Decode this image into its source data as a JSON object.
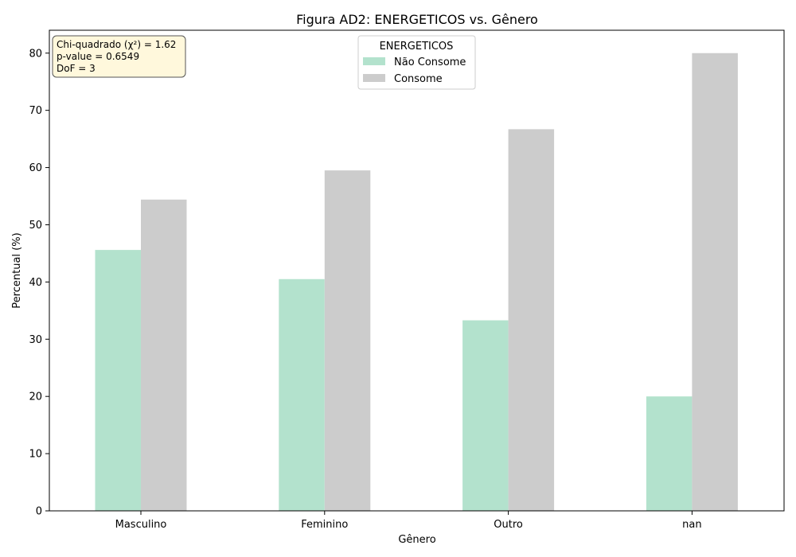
{
  "chart_data": {
    "type": "bar",
    "title": "Figura AD2: ENERGETICOS vs. Gênero",
    "xlabel": "Gênero",
    "ylabel": "Percentual (%)",
    "categories": [
      "Masculino",
      "Feminino",
      "Outro",
      "nan"
    ],
    "series": [
      {
        "name": "Não Consome",
        "values": [
          45.6,
          40.5,
          33.3,
          20.0
        ],
        "color": "#b3e2cd"
      },
      {
        "name": "Consome",
        "values": [
          54.4,
          59.5,
          66.7,
          80.0
        ],
        "color": "#cccccc"
      }
    ],
    "ylim": [
      0,
      84
    ],
    "yticks": [
      0,
      10,
      20,
      30,
      40,
      50,
      60,
      70,
      80
    ],
    "legend": {
      "title": "ENERGETICOS",
      "placement": "top-center"
    },
    "stats_box": {
      "lines": [
        "Chi-quadrado (χ²) = 1.62",
        "p-value = 0.6549",
        "DoF = 3"
      ],
      "background": "#fff8dc"
    },
    "grid": false
  }
}
